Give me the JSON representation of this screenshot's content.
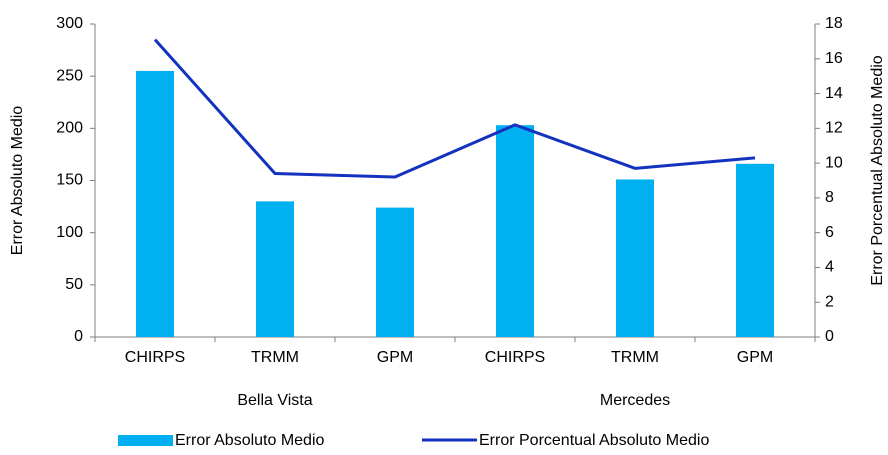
{
  "chart_data": {
    "type": "bar_line",
    "categories": [
      "CHIRPS",
      "TRMM",
      "GPM",
      "CHIRPS",
      "TRMM",
      "GPM"
    ],
    "groups": [
      "Bella Vista",
      "Mercedes"
    ],
    "ylabel": "Error Absoluto Medio",
    "y2label": "Error Porcentual Absoluto Medio",
    "ylim": [
      0,
      300
    ],
    "yticks": [
      0,
      50,
      100,
      150,
      200,
      250,
      300
    ],
    "y2lim": [
      0,
      18
    ],
    "y2ticks": [
      0,
      2,
      4,
      6,
      8,
      10,
      12,
      14,
      16,
      18
    ],
    "grid": false,
    "legend": "bottom",
    "series": [
      {
        "name": "Error Absoluto Medio",
        "type": "bar",
        "color": "#00b0f0",
        "values": [
          255,
          130,
          124,
          203,
          151,
          166
        ]
      },
      {
        "name": "Error Porcentual Absoluto Medio",
        "type": "line",
        "axis": "y2",
        "color": "#1432c0",
        "values": [
          17.1,
          9.4,
          9.2,
          12.2,
          9.7,
          10.3
        ]
      }
    ]
  }
}
